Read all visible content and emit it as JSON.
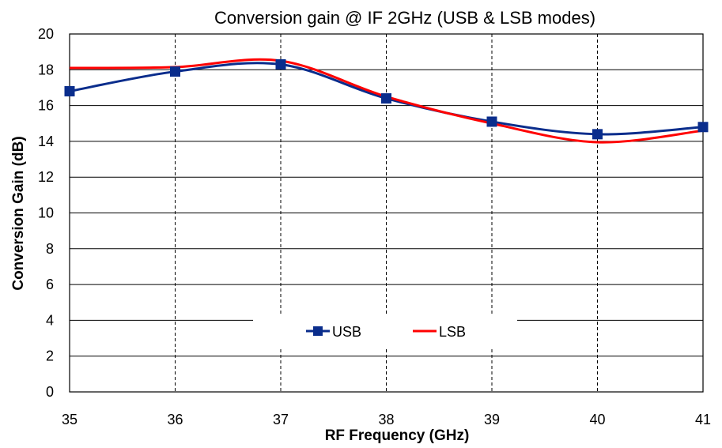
{
  "chart_data": {
    "type": "line",
    "title": "Conversion gain @ IF 2GHz (USB & LSB modes)",
    "xlabel": "RF Frequency (GHz)",
    "ylabel": "Conversion Gain  (dB)",
    "xlim": [
      35,
      41
    ],
    "ylim": [
      0,
      20
    ],
    "x_ticks": [
      "35",
      "36",
      "37",
      "38",
      "39",
      "40",
      "41"
    ],
    "y_ticks": [
      "0",
      "2",
      "4",
      "6",
      "8",
      "10",
      "12",
      "14",
      "16",
      "18",
      "20"
    ],
    "grid": {
      "horizontal": "solid",
      "vertical": "dashed"
    },
    "legend_position": "bottom-center",
    "x": [
      35,
      36,
      37,
      38,
      39,
      40,
      41
    ],
    "series": [
      {
        "name": "USB",
        "color": "#0a2d8c",
        "marker": "square",
        "smooth": true,
        "values": [
          16.8,
          17.9,
          18.3,
          16.4,
          15.1,
          14.4,
          14.8
        ]
      },
      {
        "name": "LSB",
        "color": "#ff0000",
        "marker": "none",
        "smooth": true,
        "values": [
          18.1,
          18.15,
          18.5,
          16.5,
          15.0,
          13.95,
          14.6
        ]
      }
    ]
  }
}
